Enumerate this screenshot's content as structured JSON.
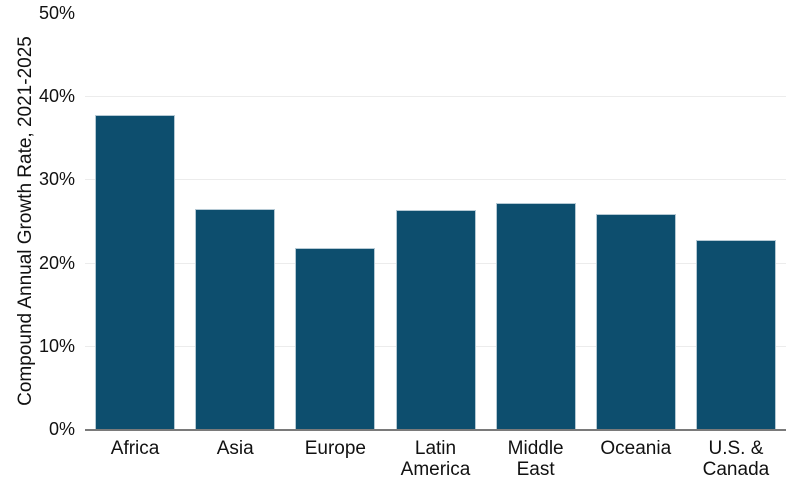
{
  "chart_data": {
    "type": "bar",
    "title": "",
    "xlabel": "",
    "ylabel": "Compound Annual Growth Rate, 2021-2025",
    "categories": [
      "Africa",
      "Asia",
      "Europe",
      "Latin\nAmerica",
      "Middle\nEast",
      "Oceania",
      "U.S. &\nCanada"
    ],
    "values": [
      37.8,
      26.4,
      21.7,
      26.3,
      27.2,
      25.8,
      22.7
    ],
    "unit": "%",
    "ylim": [
      0,
      50
    ],
    "yticks": [
      {
        "value": 0,
        "label": "0%"
      },
      {
        "value": 10,
        "label": "10%"
      },
      {
        "value": 20,
        "label": "20%"
      },
      {
        "value": 30,
        "label": "30%"
      },
      {
        "value": 40,
        "label": "40%"
      },
      {
        "value": 50,
        "label": "50%"
      }
    ],
    "gridline_values": [
      10,
      20,
      30,
      40
    ],
    "grid": "horizontal",
    "legend": "none",
    "colors": {
      "bar_fill": "#0d4e6e",
      "bar_stroke": "#b5c9d4",
      "gridline": "#ececec",
      "axis_line": "#7a7a7a",
      "text": "#111111",
      "background": "#ffffff"
    }
  }
}
